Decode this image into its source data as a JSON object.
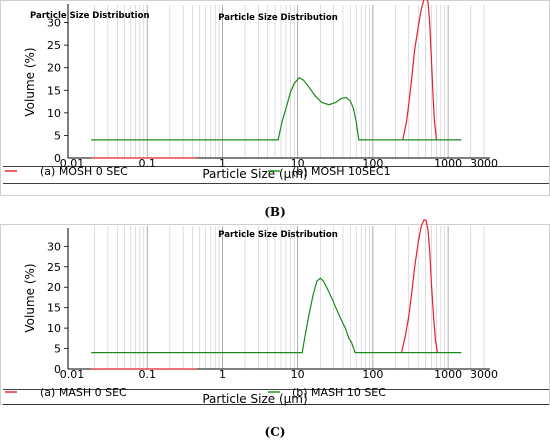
{
  "chart_data": [
    {
      "type": "line",
      "corner_title": "Particle Size Distribution",
      "title": "Particle Size Distribution",
      "xlabel": "Particle Size (µm)",
      "ylabel": "Volume (%)",
      "x_scale": "log",
      "xlim": [
        0.01,
        3000
      ],
      "ylim": [
        0,
        33
      ],
      "x_ticks": [
        "0.01",
        "0.1",
        "1",
        "10",
        "100",
        "1000",
        "3000"
      ],
      "y_ticks": [
        "5",
        "10",
        "15",
        "20",
        "25",
        "30"
      ],
      "y_zero_label": "0",
      "grid": true,
      "baseline_y": 4,
      "series": [
        {
          "name": "(a)   MOSH 0 SEC",
          "color": "#e8202a",
          "points": [
            [
              0.018,
              0
            ],
            [
              0.45,
              0
            ],
            [
              250,
              0
            ],
            [
              280,
              4
            ],
            [
              300,
              8
            ],
            [
              330,
              14
            ],
            [
              360,
              20
            ],
            [
              400,
              25
            ],
            [
              440,
              29
            ],
            [
              480,
              31.2
            ],
            [
              510,
              31.5
            ],
            [
              540,
              30.5
            ],
            [
              570,
              26
            ],
            [
              600,
              18
            ],
            [
              630,
              10
            ],
            [
              660,
              4
            ],
            [
              700,
              0
            ]
          ]
        },
        {
          "name": "(b) MOSH 10SEC1",
          "color": "#1a8a1a",
          "points": [
            [
              0.018,
              0
            ],
            [
              5.5,
              0
            ],
            [
              6.2,
              4
            ],
            [
              7,
              7
            ],
            [
              8,
              10.5
            ],
            [
              9,
              12.5
            ],
            [
              10.5,
              13.8
            ],
            [
              12,
              13.2
            ],
            [
              14,
              11.8
            ],
            [
              17,
              9.8
            ],
            [
              21,
              8.3
            ],
            [
              26,
              7.8
            ],
            [
              32,
              8.3
            ],
            [
              38,
              9.2
            ],
            [
              44,
              9.4
            ],
            [
              50,
              8.7
            ],
            [
              55,
              7
            ],
            [
              60,
              4
            ],
            [
              65,
              0
            ],
            [
              1500,
              0
            ]
          ]
        }
      ]
    },
    {
      "type": "line",
      "title": "Particle Size Distribution",
      "xlabel": "Particle Size (µm)",
      "ylabel": "Volume (%)",
      "x_scale": "log",
      "xlim": [
        0.01,
        3000
      ],
      "ylim": [
        0,
        34
      ],
      "x_ticks": [
        "0.01",
        "0.1",
        "1",
        "10",
        "100",
        "1000",
        "3000"
      ],
      "y_ticks": [
        "5",
        "10",
        "15",
        "20",
        "25",
        "30"
      ],
      "y_zero_label": "0",
      "grid": true,
      "baseline_y": 4,
      "series": [
        {
          "name": "(a)   MASH 0 SEC",
          "color": "#e8202a",
          "points": [
            [
              0.018,
              0
            ],
            [
              0.45,
              0
            ],
            [
              240,
              0
            ],
            [
              270,
              4
            ],
            [
              300,
              9
            ],
            [
              330,
              15
            ],
            [
              360,
              21
            ],
            [
              400,
              27
            ],
            [
              440,
              31
            ],
            [
              480,
              32.5
            ],
            [
              510,
              32.3
            ],
            [
              540,
              30
            ],
            [
              570,
              25
            ],
            [
              600,
              17
            ],
            [
              640,
              9
            ],
            [
              680,
              3
            ],
            [
              720,
              0
            ]
          ]
        },
        {
          "name": "(b) MASH 10 SEC",
          "color": "#1a8a1a",
          "points": [
            [
              0.018,
              0
            ],
            [
              11.5,
              0
            ],
            [
              12.5,
              4
            ],
            [
              14,
              9
            ],
            [
              16,
              14
            ],
            [
              18,
              17.5
            ],
            [
              20,
              18.2
            ],
            [
              22,
              17.5
            ],
            [
              25,
              15.5
            ],
            [
              29,
              13
            ],
            [
              33,
              10.5
            ],
            [
              38,
              8
            ],
            [
              43,
              6
            ],
            [
              48,
              3.5
            ],
            [
              52,
              2.5
            ],
            [
              58,
              0
            ],
            [
              1500,
              0
            ]
          ]
        }
      ]
    }
  ],
  "figure": {
    "panel_labels": [
      "(B)",
      "(C)"
    ]
  }
}
